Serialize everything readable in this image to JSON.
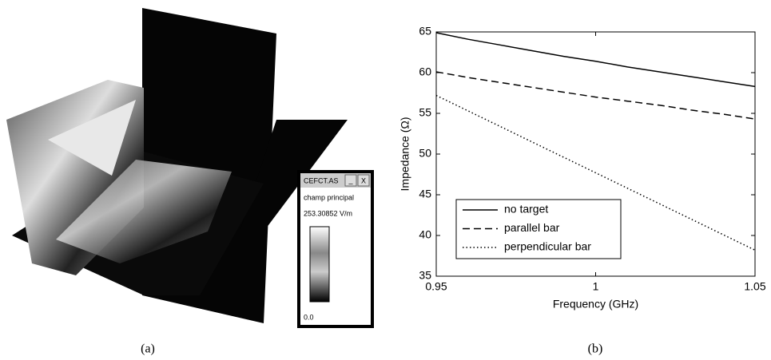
{
  "panel_a": {
    "window_title": "CEFCT.AS",
    "minimize": "_",
    "close": "X",
    "field": "champ principal",
    "max": "253.30852 V/m",
    "min": "0.0"
  },
  "captions": [
    "(a)",
    "(b)"
  ],
  "chart_data": {
    "type": "line",
    "xlabel": "Frequency (GHz)",
    "ylabel": "Impedance (Ω)",
    "x": [
      0.95,
      0.96,
      0.97,
      0.98,
      0.99,
      1.0,
      1.01,
      1.02,
      1.03,
      1.04,
      1.05
    ],
    "series": [
      {
        "name": "no target",
        "color": "#000000",
        "dash": "solid",
        "values": [
          64.9,
          64.1,
          63.4,
          62.7,
          62.0,
          61.4,
          60.7,
          60.1,
          59.5,
          58.9,
          58.3
        ]
      },
      {
        "name": "parallel bar",
        "color": "#000000",
        "dash": "dashed",
        "values": [
          60.1,
          59.4,
          58.8,
          58.2,
          57.6,
          57.0,
          56.5,
          56.0,
          55.4,
          54.9,
          54.3
        ]
      },
      {
        "name": "perpendicular bar",
        "color": "#000000",
        "dash": "dotted",
        "values": [
          57.2,
          55.3,
          53.4,
          51.5,
          49.6,
          47.7,
          45.8,
          43.9,
          42.0,
          40.1,
          38.2
        ]
      }
    ],
    "xlim": [
      0.95,
      1.05
    ],
    "xticks": [
      0.95,
      1,
      1.05
    ],
    "ylim": [
      35,
      65
    ],
    "yticks": [
      35,
      40,
      45,
      50,
      55,
      60,
      65
    ],
    "grid": false,
    "legend": "lower left"
  }
}
